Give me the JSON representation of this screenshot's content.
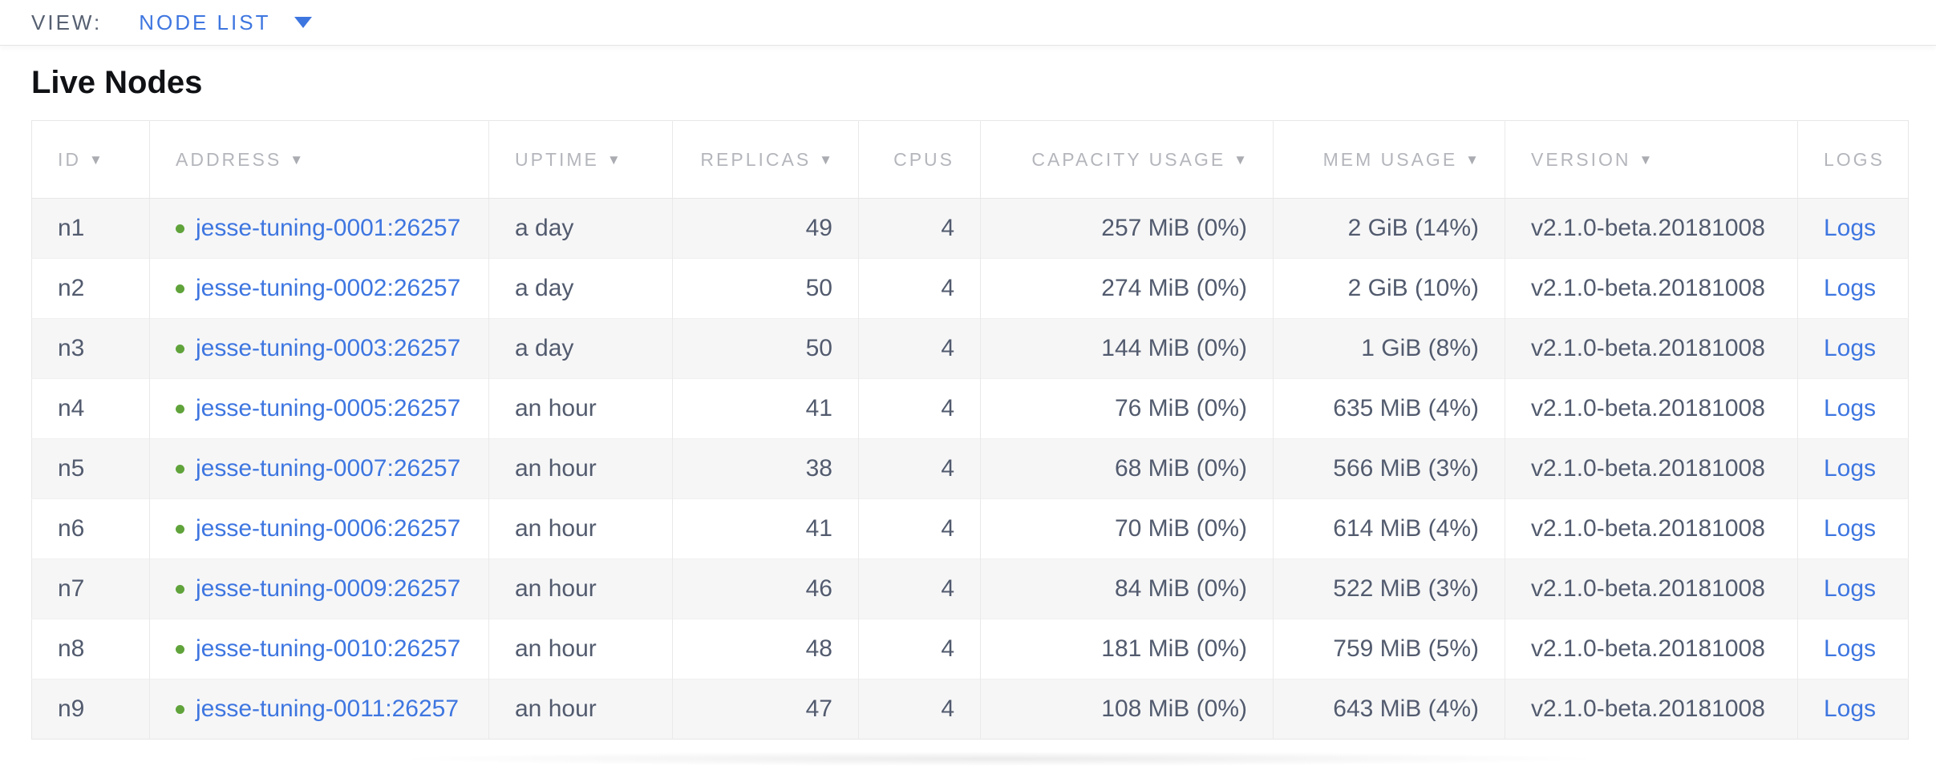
{
  "view_bar": {
    "label": "VIEW:",
    "selected": "NODE LIST"
  },
  "page": {
    "title": "Live Nodes"
  },
  "icons": {
    "sort_desc": "▼",
    "dropdown": "chevron-down-triangle",
    "status_healthy": "green-dot"
  },
  "colors": {
    "link_blue": "#3e76e0",
    "healthy_green": "#60a33b",
    "header_gray": "#b4b6bc",
    "body_text": "#525b6e",
    "row_stripe": "#f6f6f7",
    "border": "#e7e7e7"
  },
  "table": {
    "columns": [
      {
        "key": "id",
        "label": "ID",
        "sortable": true,
        "align": "left"
      },
      {
        "key": "address",
        "label": "ADDRESS",
        "sortable": true,
        "align": "left"
      },
      {
        "key": "uptime",
        "label": "UPTIME",
        "sortable": true,
        "align": "left"
      },
      {
        "key": "replicas",
        "label": "REPLICAS",
        "sortable": true,
        "align": "right"
      },
      {
        "key": "cpus",
        "label": "CPUS",
        "sortable": false,
        "align": "right"
      },
      {
        "key": "capacity",
        "label": "CAPACITY USAGE",
        "sortable": true,
        "align": "right"
      },
      {
        "key": "mem",
        "label": "MEM USAGE",
        "sortable": true,
        "align": "right"
      },
      {
        "key": "version",
        "label": "VERSION",
        "sortable": true,
        "align": "left"
      },
      {
        "key": "logs",
        "label": "LOGS",
        "sortable": false,
        "align": "left"
      }
    ],
    "rows": [
      {
        "id": "n1",
        "status": "healthy",
        "address": "jesse-tuning-0001:26257",
        "uptime": "a day",
        "replicas": "49",
        "cpus": "4",
        "capacity": "257 MiB (0%)",
        "mem": "2 GiB (14%)",
        "version": "v2.1.0-beta.20181008",
        "logs": "Logs"
      },
      {
        "id": "n2",
        "status": "healthy",
        "address": "jesse-tuning-0002:26257",
        "uptime": "a day",
        "replicas": "50",
        "cpus": "4",
        "capacity": "274 MiB (0%)",
        "mem": "2 GiB (10%)",
        "version": "v2.1.0-beta.20181008",
        "logs": "Logs"
      },
      {
        "id": "n3",
        "status": "healthy",
        "address": "jesse-tuning-0003:26257",
        "uptime": "a day",
        "replicas": "50",
        "cpus": "4",
        "capacity": "144 MiB (0%)",
        "mem": "1 GiB (8%)",
        "version": "v2.1.0-beta.20181008",
        "logs": "Logs"
      },
      {
        "id": "n4",
        "status": "healthy",
        "address": "jesse-tuning-0005:26257",
        "uptime": "an hour",
        "replicas": "41",
        "cpus": "4",
        "capacity": "76 MiB (0%)",
        "mem": "635 MiB (4%)",
        "version": "v2.1.0-beta.20181008",
        "logs": "Logs"
      },
      {
        "id": "n5",
        "status": "healthy",
        "address": "jesse-tuning-0007:26257",
        "uptime": "an hour",
        "replicas": "38",
        "cpus": "4",
        "capacity": "68 MiB (0%)",
        "mem": "566 MiB (3%)",
        "version": "v2.1.0-beta.20181008",
        "logs": "Logs"
      },
      {
        "id": "n6",
        "status": "healthy",
        "address": "jesse-tuning-0006:26257",
        "uptime": "an hour",
        "replicas": "41",
        "cpus": "4",
        "capacity": "70 MiB (0%)",
        "mem": "614 MiB (4%)",
        "version": "v2.1.0-beta.20181008",
        "logs": "Logs"
      },
      {
        "id": "n7",
        "status": "healthy",
        "address": "jesse-tuning-0009:26257",
        "uptime": "an hour",
        "replicas": "46",
        "cpus": "4",
        "capacity": "84 MiB (0%)",
        "mem": "522 MiB (3%)",
        "version": "v2.1.0-beta.20181008",
        "logs": "Logs"
      },
      {
        "id": "n8",
        "status": "healthy",
        "address": "jesse-tuning-0010:26257",
        "uptime": "an hour",
        "replicas": "48",
        "cpus": "4",
        "capacity": "181 MiB (0%)",
        "mem": "759 MiB (5%)",
        "version": "v2.1.0-beta.20181008",
        "logs": "Logs"
      },
      {
        "id": "n9",
        "status": "healthy",
        "address": "jesse-tuning-0011:26257",
        "uptime": "an hour",
        "replicas": "47",
        "cpus": "4",
        "capacity": "108 MiB (0%)",
        "mem": "643 MiB (4%)",
        "version": "v2.1.0-beta.20181008",
        "logs": "Logs"
      }
    ]
  }
}
